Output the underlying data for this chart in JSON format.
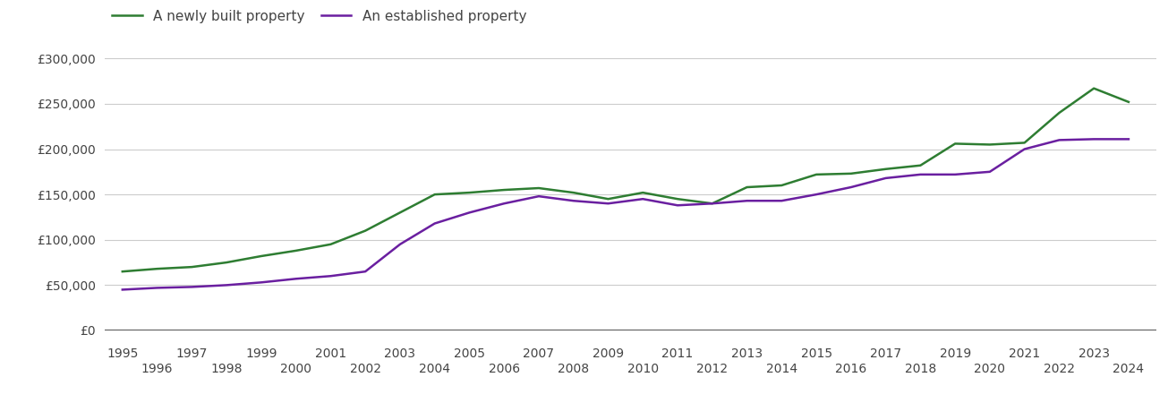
{
  "newly_built": {
    "years": [
      1995,
      1996,
      1997,
      1998,
      1999,
      2000,
      2001,
      2002,
      2003,
      2004,
      2005,
      2006,
      2007,
      2008,
      2009,
      2010,
      2011,
      2012,
      2013,
      2014,
      2015,
      2016,
      2017,
      2018,
      2019,
      2020,
      2021,
      2022,
      2023,
      2024
    ],
    "values": [
      65000,
      68000,
      70000,
      75000,
      82000,
      88000,
      95000,
      110000,
      130000,
      150000,
      152000,
      155000,
      157000,
      152000,
      145000,
      152000,
      145000,
      140000,
      158000,
      160000,
      172000,
      173000,
      178000,
      182000,
      206000,
      205000,
      207000,
      240000,
      267000,
      252000
    ]
  },
  "established": {
    "years": [
      1995,
      1996,
      1997,
      1998,
      1999,
      2000,
      2001,
      2002,
      2003,
      2004,
      2005,
      2006,
      2007,
      2008,
      2009,
      2010,
      2011,
      2012,
      2013,
      2014,
      2015,
      2016,
      2017,
      2018,
      2019,
      2020,
      2021,
      2022,
      2023,
      2024
    ],
    "values": [
      45000,
      47000,
      48000,
      50000,
      53000,
      57000,
      60000,
      65000,
      95000,
      118000,
      130000,
      140000,
      148000,
      143000,
      140000,
      145000,
      138000,
      140000,
      143000,
      143000,
      150000,
      158000,
      168000,
      172000,
      172000,
      175000,
      200000,
      210000,
      211000,
      211000
    ]
  },
  "newly_color": "#2e7d32",
  "established_color": "#6a1fa0",
  "line_width": 1.8,
  "ylim": [
    0,
    320000
  ],
  "yticks": [
    0,
    50000,
    100000,
    150000,
    200000,
    250000,
    300000
  ],
  "ytick_labels": [
    "£0",
    "£50,000",
    "£100,000",
    "£150,000",
    "£200,000",
    "£250,000",
    "£300,000"
  ],
  "xticks_odd": [
    1995,
    1997,
    1999,
    2001,
    2003,
    2005,
    2007,
    2009,
    2011,
    2013,
    2015,
    2017,
    2019,
    2021,
    2023
  ],
  "xticks_even": [
    1996,
    1998,
    2000,
    2002,
    2004,
    2006,
    2008,
    2010,
    2012,
    2014,
    2016,
    2018,
    2020,
    2022,
    2024
  ],
  "legend_newly": "A newly built property",
  "legend_established": "An established property",
  "background_color": "#ffffff",
  "grid_color": "#cccccc",
  "tick_label_color": "#444444",
  "legend_fontsize": 11,
  "tick_fontsize": 10,
  "xlim_left": 1994.5,
  "xlim_right": 2024.8
}
